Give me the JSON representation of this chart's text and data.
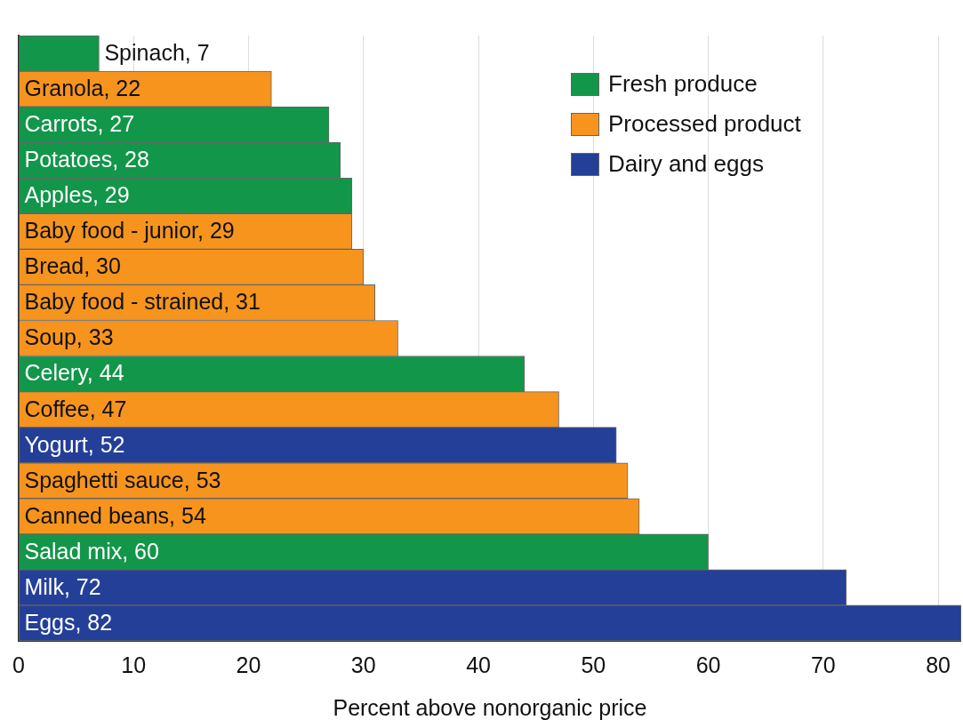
{
  "chart_data": {
    "type": "bar",
    "orientation": "horizontal",
    "xlabel": "Percent above nonorganic price",
    "categories": [
      "Spinach, 7",
      "Granola, 22",
      "Carrots, 27",
      "Potatoes, 28",
      "Apples, 29",
      "Baby food - junior, 29",
      "Bread, 30",
      "Baby food - strained, 31",
      "Soup, 33",
      "Celery, 44",
      "Coffee, 47",
      "Yogurt, 52",
      "Spaghetti sauce, 53",
      "Canned beans, 54",
      "Salad mix, 60",
      "Milk, 72",
      "Eggs, 82"
    ],
    "series": [
      {
        "name": "Fresh produce",
        "color": "#12964a",
        "values": [
          7,
          null,
          27,
          28,
          29,
          null,
          null,
          null,
          null,
          44,
          null,
          null,
          null,
          null,
          60,
          null,
          null
        ]
      },
      {
        "name": "Processed product",
        "color": "#f6941e",
        "values": [
          null,
          22,
          null,
          null,
          null,
          29,
          30,
          31,
          33,
          null,
          47,
          null,
          53,
          54,
          null,
          null,
          null
        ]
      },
      {
        "name": "Dairy and eggs",
        "color": "#233f98",
        "values": [
          null,
          null,
          null,
          null,
          null,
          null,
          null,
          null,
          null,
          null,
          null,
          52,
          null,
          null,
          null,
          72,
          82
        ]
      }
    ],
    "xlim": [
      0,
      82
    ],
    "xticks": [
      0,
      10,
      20,
      30,
      40,
      50,
      60,
      70,
      80
    ],
    "grid": "x",
    "legend": "top right"
  }
}
